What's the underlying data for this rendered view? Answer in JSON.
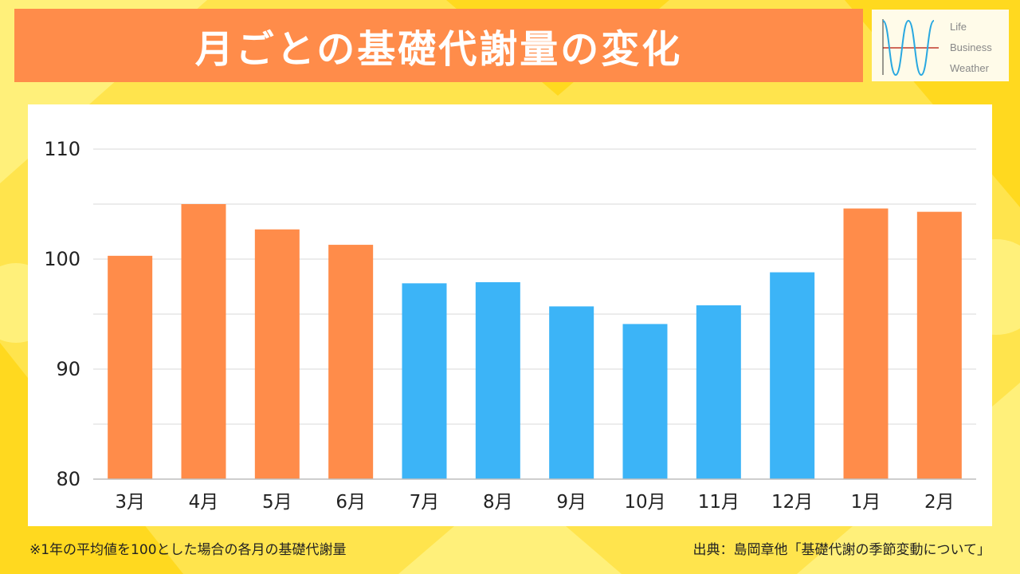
{
  "title": "月ごとの基礎代謝量の変化",
  "logo": {
    "lines": [
      "Life",
      "Business",
      "Weather"
    ],
    "colors": {
      "wave": "#29a8e0",
      "axis": "#c0392b"
    }
  },
  "note": "※1年の平均値を100とした場合の各月の基礎代謝量",
  "source": "出典：島岡章他「基礎代謝の季節変動について」",
  "colors": {
    "background": "#ffe44d",
    "banner": "#ff8c4a",
    "warm_bar": "#ff8c4a",
    "cool_bar": "#3cb4f7",
    "grid": "#d9d9d9"
  },
  "chart_data": {
    "type": "bar",
    "title": "",
    "xlabel": "",
    "ylabel": "",
    "ylim": [
      80,
      110
    ],
    "yticks": [
      80,
      90,
      100,
      110
    ],
    "grid": true,
    "gridlines": [
      80,
      85,
      90,
      95,
      100,
      105,
      110
    ],
    "categories": [
      "3月",
      "4月",
      "5月",
      "6月",
      "7月",
      "8月",
      "9月",
      "10月",
      "11月",
      "12月",
      "1月",
      "2月"
    ],
    "values": [
      100.3,
      105.0,
      102.7,
      101.3,
      97.8,
      97.9,
      95.7,
      94.1,
      95.8,
      98.8,
      104.6,
      104.3
    ],
    "bar_colors": [
      "#ff8c4a",
      "#ff8c4a",
      "#ff8c4a",
      "#ff8c4a",
      "#3cb4f7",
      "#3cb4f7",
      "#3cb4f7",
      "#3cb4f7",
      "#3cb4f7",
      "#3cb4f7",
      "#ff8c4a",
      "#ff8c4a"
    ]
  }
}
